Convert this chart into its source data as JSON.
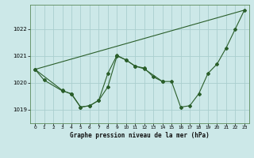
{
  "title": "Graphe pression niveau de la mer (hPa)",
  "background_color": "#cce8e8",
  "grid_color": "#aacece",
  "line_color": "#2a5e2a",
  "ylim": [
    1018.5,
    1022.9
  ],
  "xlim": [
    -0.5,
    23.5
  ],
  "yticks": [
    1019,
    1020,
    1021,
    1022
  ],
  "xticks": [
    0,
    1,
    2,
    3,
    4,
    5,
    6,
    7,
    8,
    9,
    10,
    11,
    12,
    13,
    14,
    15,
    16,
    17,
    18,
    19,
    20,
    21,
    22,
    23
  ],
  "trend_x": [
    0,
    23
  ],
  "trend_y": [
    1020.5,
    1022.7
  ],
  "line1_x": [
    0,
    1,
    3,
    4,
    5,
    6,
    7,
    8,
    9,
    10,
    11,
    12,
    13,
    14
  ],
  "line1_y": [
    1020.5,
    1020.1,
    1019.7,
    1019.6,
    1019.1,
    1019.15,
    1019.35,
    1019.85,
    1021.0,
    1020.85,
    1020.62,
    1020.55,
    1020.22,
    1020.05
  ],
  "line2_x": [
    0,
    3,
    4,
    5,
    6,
    7,
    8,
    9,
    10,
    11,
    12,
    14,
    15,
    16,
    17,
    18,
    19,
    20,
    21,
    22,
    23
  ],
  "line2_y": [
    1020.5,
    1019.72,
    1019.58,
    1019.1,
    1019.15,
    1019.35,
    1020.35,
    1021.02,
    1020.85,
    1020.62,
    1020.52,
    1020.05,
    1020.05,
    1019.1,
    1019.15,
    1019.6,
    1020.35,
    1020.7,
    1021.3,
    1022.0,
    1022.7
  ],
  "figsize": [
    3.2,
    2.0
  ],
  "dpi": 100
}
